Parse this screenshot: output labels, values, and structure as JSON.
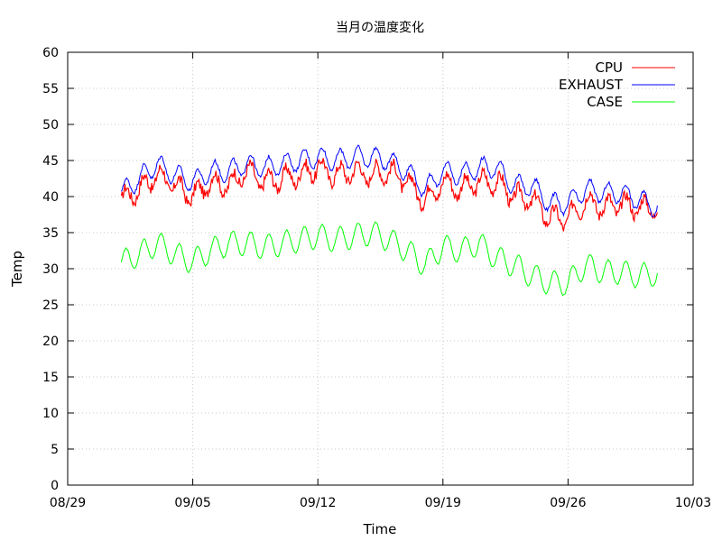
{
  "chart_data": {
    "type": "line",
    "title": "当月の温度変化",
    "xlabel": "Time",
    "ylabel": "Temp",
    "xlim": [
      "08/29",
      "10/03"
    ],
    "ylim": [
      0,
      60
    ],
    "x_ticks": [
      "08/29",
      "09/05",
      "09/12",
      "09/19",
      "09/26",
      "10/03"
    ],
    "y_ticks": [
      0,
      5,
      10,
      15,
      20,
      25,
      30,
      35,
      40,
      45,
      50,
      55,
      60
    ],
    "grid": true,
    "legend_position": "top-right",
    "series": [
      {
        "name": "CPU",
        "color": "#ff0000",
        "x": [
          "09/01",
          "09/02",
          "09/03",
          "09/04",
          "09/05",
          "09/06",
          "09/07",
          "09/08",
          "09/09",
          "09/10",
          "09/11",
          "09/12",
          "09/13",
          "09/14",
          "09/15",
          "09/16",
          "09/17",
          "09/18",
          "09/19",
          "09/20",
          "09/21",
          "09/22",
          "09/23",
          "09/24",
          "09/25",
          "09/26",
          "09/27",
          "09/28",
          "09/29",
          "09/30",
          "10/01"
        ],
        "values": [
          39.5,
          41,
          43,
          41.5,
          40,
          42,
          41.5,
          43.5,
          42,
          42.5,
          43,
          44,
          43,
          43.5,
          43,
          43.5,
          42,
          39.5,
          42,
          41,
          42,
          42,
          40,
          39.5,
          37,
          37,
          39.5,
          38.5,
          39,
          38.5,
          38.5
        ]
      },
      {
        "name": "EXHAUST",
        "color": "#0000ff",
        "x": [
          "09/01",
          "09/02",
          "09/03",
          "09/04",
          "09/05",
          "09/06",
          "09/07",
          "09/08",
          "09/09",
          "09/10",
          "09/11",
          "09/12",
          "09/13",
          "09/14",
          "09/15",
          "09/16",
          "09/17",
          "09/18",
          "09/19",
          "09/20",
          "09/21",
          "09/22",
          "09/23",
          "09/24",
          "09/25",
          "09/26",
          "09/27",
          "09/28",
          "09/29",
          "09/30",
          "10/01"
        ],
        "values": [
          40.5,
          42.5,
          44.5,
          43,
          42,
          43.5,
          43.5,
          44.5,
          44,
          44.5,
          45,
          45.5,
          45,
          45.5,
          45.5,
          45,
          43.5,
          41,
          43.5,
          43,
          44,
          44,
          41.5,
          41.5,
          39,
          39,
          41,
          40.5,
          40.5,
          39.5,
          38.5
        ]
      },
      {
        "name": "CASE",
        "color": "#00ff00",
        "x": [
          "09/01",
          "09/02",
          "09/03",
          "09/04",
          "09/05",
          "09/06",
          "09/07",
          "09/08",
          "09/09",
          "09/10",
          "09/11",
          "09/12",
          "09/13",
          "09/14",
          "09/15",
          "09/16",
          "09/17",
          "09/18",
          "09/19",
          "09/20",
          "09/21",
          "09/22",
          "09/23",
          "09/24",
          "09/25",
          "09/26",
          "09/27",
          "09/28",
          "09/29",
          "09/30",
          "10/01"
        ],
        "values": [
          30.8,
          32,
          33.5,
          32,
          31,
          32.5,
          33.5,
          33.5,
          33,
          33.5,
          34,
          34.5,
          34,
          34.5,
          35,
          34,
          32.5,
          30.5,
          33,
          32.5,
          33.5,
          31.5,
          30.5,
          29,
          28,
          28,
          30.5,
          29.5,
          29.5,
          29,
          29.3
        ]
      }
    ]
  }
}
